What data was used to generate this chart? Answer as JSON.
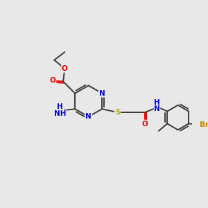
{
  "bg_color": "#e8e8e8",
  "bond_color": "#3a3a3a",
  "N_color": "#0000ee",
  "O_color": "#ee0000",
  "S_color": "#bbaa00",
  "Br_color": "#cc8800",
  "figsize": [
    3.0,
    3.0
  ],
  "dpi": 100,
  "xlim": [
    0,
    10
  ],
  "ylim": [
    0,
    10
  ]
}
